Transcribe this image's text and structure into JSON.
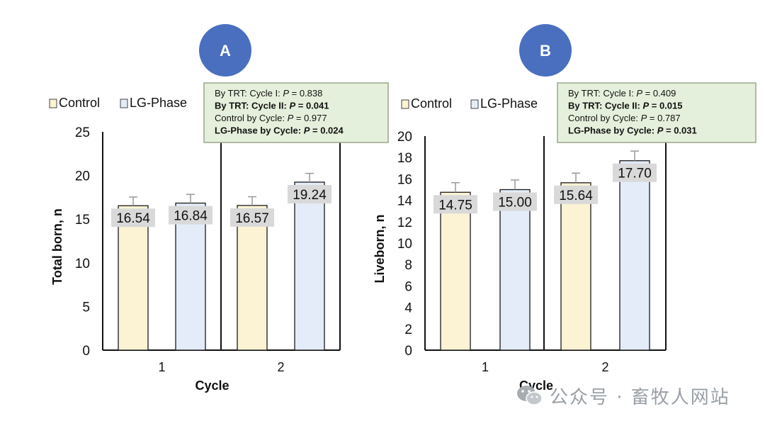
{
  "legend_labels": [
    "Control",
    "LG-Phase"
  ],
  "colors": {
    "control_fill": "#fbf3d4",
    "lg_fill": "#e3ecf8",
    "bar_stroke": "#1a1a1a",
    "circle": "#4a6fbf",
    "stats_bg": "#e5f0dc",
    "stats_border": "#9aa58a",
    "value_label_bg": "#d9d9d9",
    "error_bar": "#999999"
  },
  "watermark": {
    "text": "公众号 · 畜牧人网站",
    "icon": "wechat-logo-icon"
  },
  "chart_data": [
    {
      "panel": "A",
      "type": "bar",
      "categories": [
        "1",
        "2"
      ],
      "series": [
        {
          "name": "Control",
          "values": [
            16.54,
            16.57
          ],
          "error": [
            1.0,
            1.0
          ]
        },
        {
          "name": "LG-Phase",
          "values": [
            16.84,
            19.24
          ],
          "error": [
            1.0,
            1.0
          ]
        }
      ],
      "value_labels": [
        "16.54",
        "16.84",
        "16.57",
        "19.24"
      ],
      "xlabel": "Cycle",
      "ylabel": "Total born, n",
      "ylim": [
        0,
        25
      ],
      "yticks": [
        "0",
        "5",
        "10",
        "15",
        "20",
        "25"
      ],
      "legend_position": "top-left",
      "grid": false,
      "stats_box": [
        {
          "label": "By TRT: Cycle I: ",
          "p": "P",
          "value": " = 0.838",
          "bold": false
        },
        {
          "label": "By TRT: Cycle II: ",
          "p": "P",
          "value": " = 0.041",
          "bold": true
        },
        {
          "label": "Control by Cycle: ",
          "p": "P",
          "value": " = 0.977",
          "bold": false
        },
        {
          "label": "LG-Phase by Cycle: ",
          "p": "P",
          "value": " = 0.024",
          "bold": true
        }
      ]
    },
    {
      "panel": "B",
      "type": "bar",
      "categories": [
        "1",
        "2"
      ],
      "series": [
        {
          "name": "Control",
          "values": [
            14.75,
            15.64
          ],
          "error": [
            0.9,
            0.9
          ]
        },
        {
          "name": "LG-Phase",
          "values": [
            15.0,
            17.7
          ],
          "error": [
            0.9,
            0.9
          ]
        }
      ],
      "value_labels": [
        "14.75",
        "15.00",
        "15.64",
        "17.70"
      ],
      "xlabel": "Cycle",
      "ylabel": "Liveborn, n",
      "ylim": [
        0,
        20
      ],
      "yticks": [
        "0",
        "2",
        "4",
        "6",
        "8",
        "10",
        "12",
        "14",
        "16",
        "18",
        "20"
      ],
      "legend_position": "top-left",
      "grid": false,
      "stats_box": [
        {
          "label": "By TRT: Cycle I: ",
          "p": "P",
          "value": " = 0.409",
          "bold": false
        },
        {
          "label": "By TRT: Cycle II: ",
          "p": "P",
          "value": " = 0.015",
          "bold": true
        },
        {
          "label": "Control by Cycle: ",
          "p": "P",
          "value": " = 0.787",
          "bold": false
        },
        {
          "label": "LG-Phase by Cycle: ",
          "p": "P",
          "value": " = 0.031",
          "bold": true
        }
      ]
    }
  ]
}
